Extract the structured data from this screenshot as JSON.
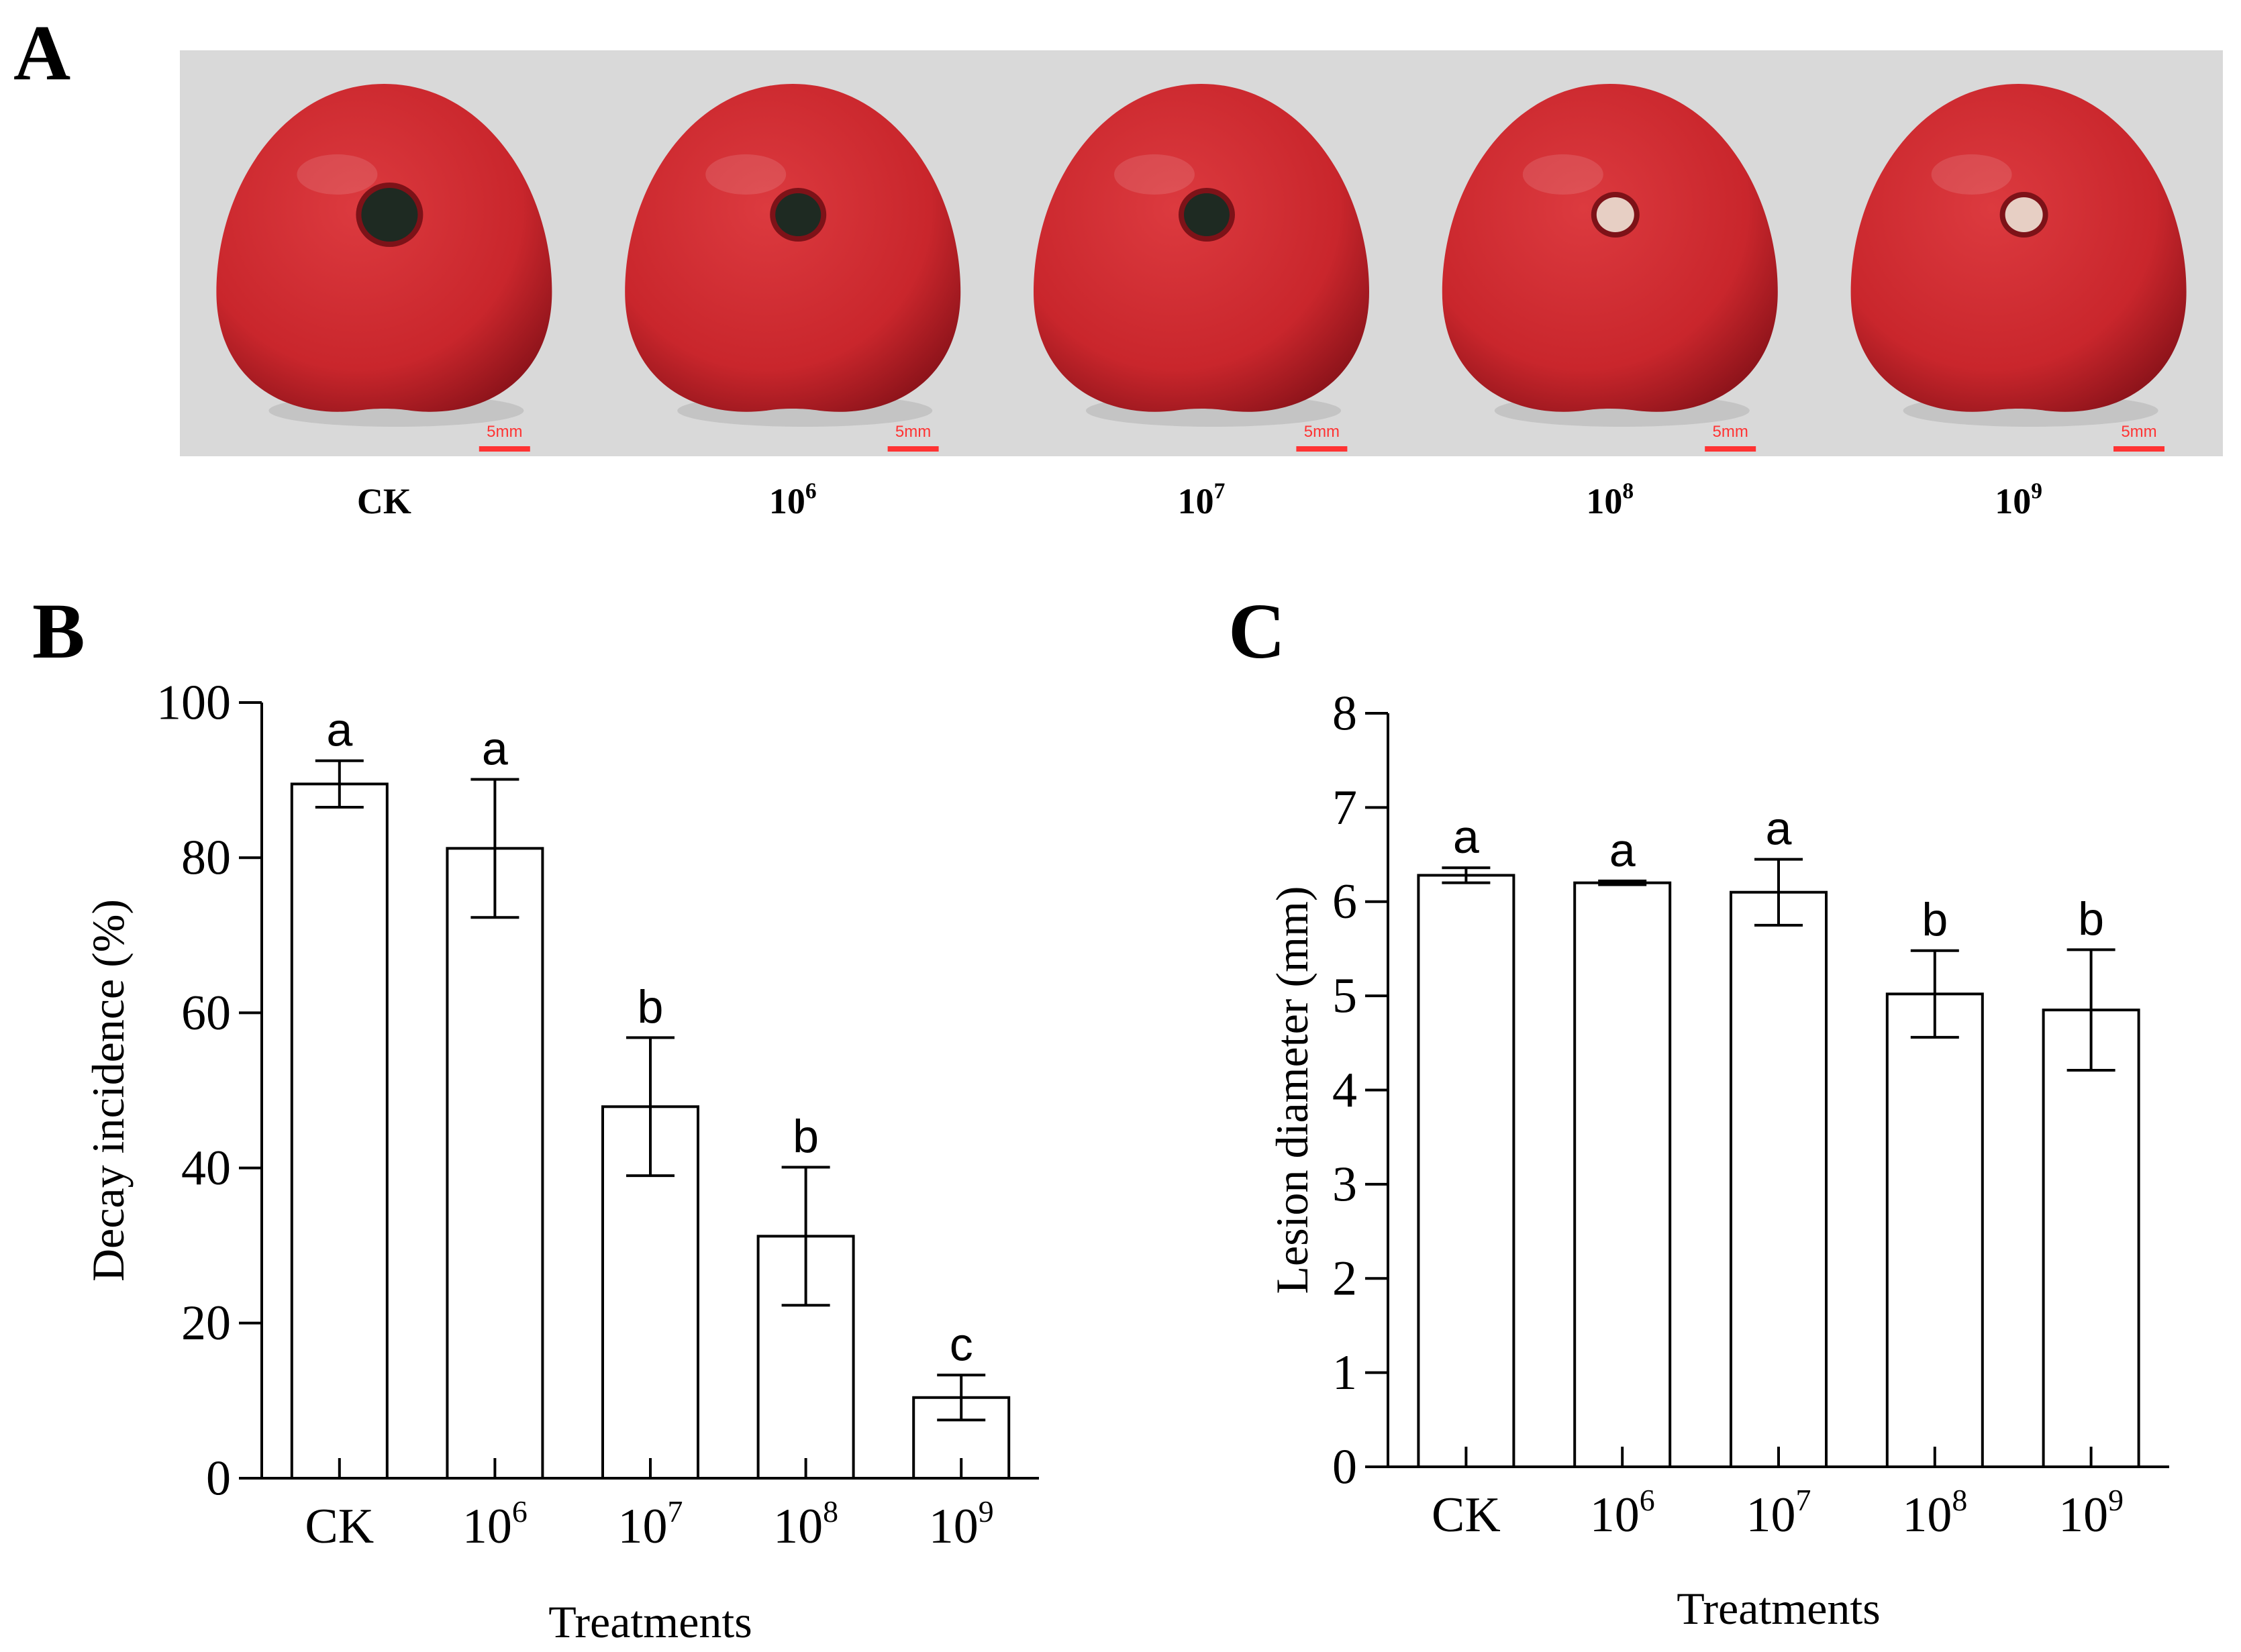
{
  "panels": [
    {
      "letter": "A"
    },
    {
      "letter": "B"
    },
    {
      "letter": "C"
    }
  ],
  "panel_a": {
    "photos": [
      {
        "label_base": "CK",
        "label_sup": "",
        "scale_bar": "5mm"
      },
      {
        "label_base": "10",
        "label_sup": "6",
        "scale_bar": "5mm"
      },
      {
        "label_base": "10",
        "label_sup": "7",
        "scale_bar": "5mm"
      },
      {
        "label_base": "10",
        "label_sup": "8",
        "scale_bar": "5mm"
      },
      {
        "label_base": "10",
        "label_sup": "9",
        "scale_bar": "5mm"
      }
    ],
    "colors": {
      "background": "#d9d9d9",
      "fruit": "#c9262c",
      "lesion_dark": "#1e2a22",
      "lesion_light": "#e7cfc4",
      "scale_bar": "#ff3333"
    }
  },
  "chart_data": [
    {
      "panel": "B",
      "type": "bar",
      "categories": [
        {
          "base": "CK",
          "sup": ""
        },
        {
          "base": "10",
          "sup": "6"
        },
        {
          "base": "10",
          "sup": "7"
        },
        {
          "base": "10",
          "sup": "8"
        },
        {
          "base": "10",
          "sup": "9"
        }
      ],
      "values": [
        89.5,
        81.2,
        47.9,
        31.2,
        10.4
      ],
      "errors": [
        3.0,
        8.9,
        8.9,
        8.9,
        2.9
      ],
      "significance": [
        "a",
        "a",
        "b",
        "b",
        "c"
      ],
      "xlabel": "Treatments",
      "ylabel": "Decay incidence (%)",
      "ylim": [
        0,
        100
      ],
      "yticks": [
        0,
        20,
        40,
        60,
        80,
        100
      ],
      "bar_color": "#ffffff",
      "grid": false
    },
    {
      "panel": "C",
      "type": "bar",
      "categories": [
        {
          "base": "CK",
          "sup": ""
        },
        {
          "base": "10",
          "sup": "6"
        },
        {
          "base": "10",
          "sup": "7"
        },
        {
          "base": "10",
          "sup": "8"
        },
        {
          "base": "10",
          "sup": "9"
        }
      ],
      "values": [
        6.28,
        6.2,
        6.1,
        5.02,
        4.85
      ],
      "errors": [
        0.08,
        0.02,
        0.35,
        0.46,
        0.64
      ],
      "significance": [
        "a",
        "a",
        "a",
        "b",
        "b"
      ],
      "xlabel": "Treatments",
      "ylabel": "Lesion diameter (mm)",
      "ylim": [
        0,
        8
      ],
      "yticks": [
        0,
        1,
        2,
        3,
        4,
        5,
        6,
        7,
        8
      ],
      "bar_color": "#ffffff",
      "grid": false
    }
  ]
}
